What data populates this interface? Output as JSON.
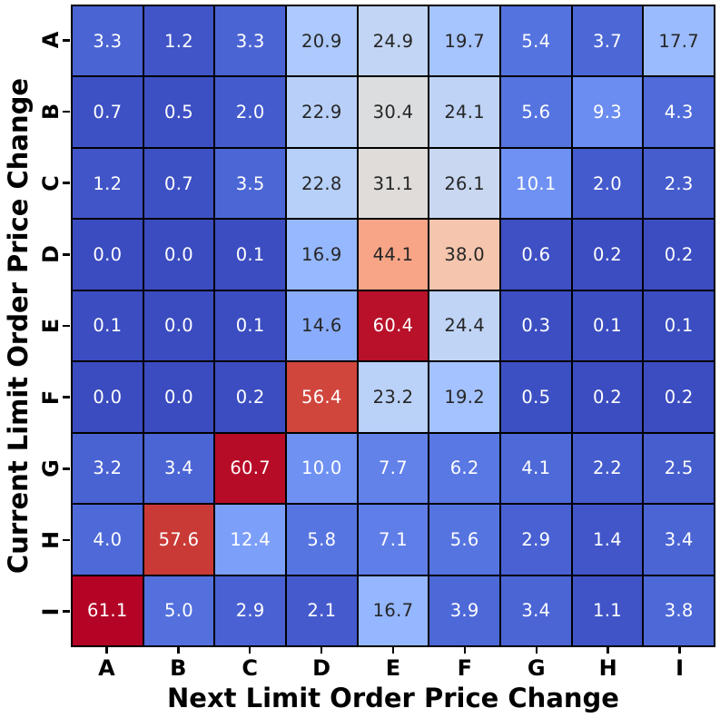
{
  "chart_data": {
    "type": "heatmap",
    "xlabel": "Next Limit Order Price Change",
    "ylabel": "Current Limit Order Price Change",
    "x_categories": [
      "A",
      "B",
      "C",
      "D",
      "E",
      "F",
      "G",
      "H",
      "I"
    ],
    "y_categories": [
      "A",
      "B",
      "C",
      "D",
      "E",
      "F",
      "G",
      "H",
      "I"
    ],
    "rows": [
      [
        3.3,
        1.2,
        3.3,
        20.9,
        24.9,
        19.7,
        5.4,
        3.7,
        17.7
      ],
      [
        0.7,
        0.5,
        2.0,
        22.9,
        30.4,
        24.1,
        5.6,
        9.3,
        4.3
      ],
      [
        1.2,
        0.7,
        3.5,
        22.8,
        31.1,
        26.1,
        10.1,
        2.0,
        2.3
      ],
      [
        0.0,
        0.0,
        0.1,
        16.9,
        44.1,
        38.0,
        0.6,
        0.2,
        0.2
      ],
      [
        0.1,
        0.0,
        0.1,
        14.6,
        60.4,
        24.4,
        0.3,
        0.1,
        0.1
      ],
      [
        0.0,
        0.0,
        0.2,
        56.4,
        23.2,
        19.2,
        0.5,
        0.2,
        0.2
      ],
      [
        3.2,
        3.4,
        60.7,
        10.0,
        7.7,
        6.2,
        4.1,
        2.2,
        2.5
      ],
      [
        4.0,
        57.6,
        12.4,
        5.8,
        7.1,
        5.6,
        2.9,
        1.4,
        3.4
      ],
      [
        61.1,
        5.0,
        2.9,
        2.1,
        16.7,
        3.9,
        3.4,
        1.1,
        3.8
      ]
    ],
    "vmin": 0.0,
    "vmax": 61.1,
    "colormap": "coolwarm",
    "value_decimals": 1,
    "annotation_colors": {
      "on_light": "#262626",
      "on_dark": "#ffffff"
    },
    "grid_line_color": "#000000",
    "legend": "none",
    "title": ""
  }
}
